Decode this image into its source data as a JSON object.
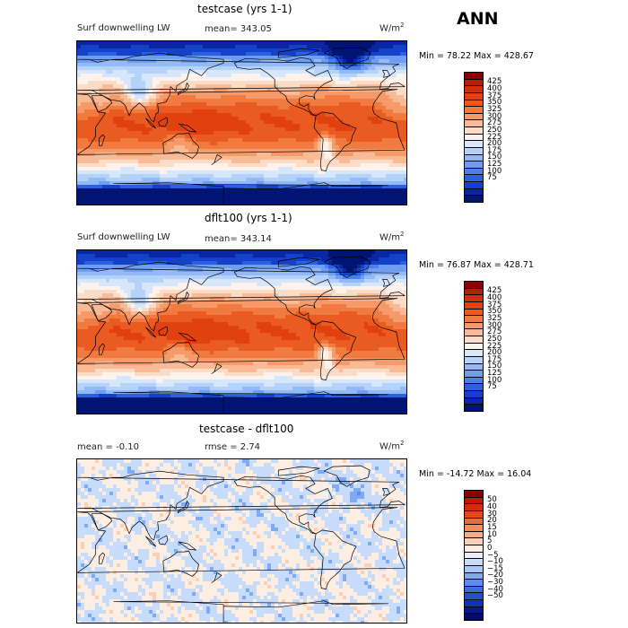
{
  "figure_title": "ANN",
  "panels": [
    {
      "id": "top",
      "title": "testcase (yrs 1-1)",
      "variable": "Surf downwelling LW",
      "mean_label": "mean= 343.05",
      "units": "W/m",
      "units_exp": "2",
      "minmax": "Min =   78.22 Max = 428.67",
      "field_type": "absolute",
      "colorbar": {
        "colors": [
          "#8b0000",
          "#b81d06",
          "#cf2f0c",
          "#e1410f",
          "#ea5b22",
          "#f07a40",
          "#f59a68",
          "#f8bb96",
          "#fbdcc7",
          "#fdf3ec",
          "#d6e7fc",
          "#b5d2fa",
          "#93baf6",
          "#6e9ef1",
          "#4b80eb",
          "#2b61e0",
          "#1341c8",
          "#0a26a2",
          "#001473"
        ],
        "labels": [
          "425",
          "400",
          "375",
          "350",
          "325",
          "300",
          "275",
          "250",
          "225",
          "200",
          "175",
          "150",
          "125",
          "100",
          "75"
        ]
      }
    },
    {
      "id": "middle",
      "title": "dflt100 (yrs 1-1)",
      "variable": "Surf downwelling LW",
      "mean_label": "mean= 343.14",
      "units": "W/m",
      "units_exp": "2",
      "minmax": "Min =   76.87 Max = 428.71",
      "field_type": "absolute",
      "colorbar": {
        "colors": [
          "#8b0000",
          "#b81d06",
          "#cf2f0c",
          "#e1410f",
          "#ea5b22",
          "#f07a40",
          "#f59a68",
          "#f8bb96",
          "#fbdcc7",
          "#fdf3ec",
          "#d6e7fc",
          "#b5d2fa",
          "#93baf6",
          "#6e9ef1",
          "#4b80eb",
          "#2b61e0",
          "#1341c8",
          "#0a26a2",
          "#001473"
        ],
        "labels": [
          "425",
          "400",
          "375",
          "350",
          "325",
          "300",
          "275",
          "250",
          "225",
          "200",
          "175",
          "150",
          "125",
          "100",
          "75"
        ]
      }
    },
    {
      "id": "bottom",
      "title": "testcase - dflt100",
      "mean_label": "mean =   -0.10",
      "rmse_label": "rmse =    2.74",
      "units": "W/m",
      "units_exp": "2",
      "minmax": "Min = -14.72 Max =   16.04",
      "field_type": "difference",
      "colorbar": {
        "colors": [
          "#8b0000",
          "#b81d06",
          "#d2300c",
          "#e4491a",
          "#ee6a35",
          "#f48d58",
          "#f7ac82",
          "#fbd0b6",
          "#fdeee3",
          "#e4eefc",
          "#c7dcfa",
          "#a6c6f7",
          "#80abf2",
          "#5a8ded",
          "#3a6fe4",
          "#1f50d2",
          "#0f33b2",
          "#061d86",
          "#000f63"
        ],
        "labels": [
          "50",
          "40",
          "30",
          "20",
          "15",
          "10",
          "5",
          "0",
          "−5",
          "−10",
          "−15",
          "−20",
          "−30",
          "−40",
          "−50"
        ]
      }
    }
  ]
}
